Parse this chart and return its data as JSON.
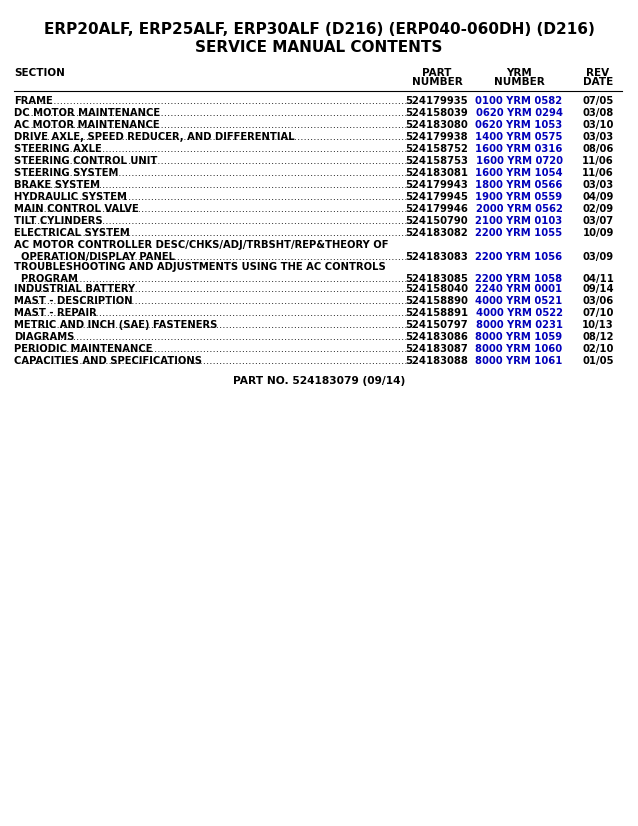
{
  "title_line1": "ERP20ALF, ERP25ALF, ERP30ALF (D216) (ERP040-060DH) (D216)",
  "title_line2": "SERVICE MANUAL CONTENTS",
  "rows": [
    {
      "section": "FRAME",
      "dots": true,
      "part": "524179935",
      "yrm": "0100 YRM 0582",
      "rev": "07/05",
      "multiline": false
    },
    {
      "section": "DC MOTOR MAINTENANCE",
      "dots": true,
      "part": "524158039",
      "yrm": "0620 YRM 0294",
      "rev": "03/08",
      "multiline": false
    },
    {
      "section": "AC MOTOR MAINTENANCE",
      "dots": true,
      "part": "524183080",
      "yrm": "0620 YRM 1053",
      "rev": "03/10",
      "multiline": false
    },
    {
      "section": "DRIVE AXLE, SPEED REDUCER, AND DIFFERENTIAL",
      "dots": true,
      "part": "524179938",
      "yrm": "1400 YRM 0575",
      "rev": "03/03",
      "multiline": false
    },
    {
      "section": "STEERING AXLE",
      "dots": true,
      "part": "524158752",
      "yrm": "1600 YRM 0316",
      "rev": "08/06",
      "multiline": false
    },
    {
      "section": "STEERING CONTROL UNIT",
      "dots": true,
      "part": "524158753",
      "yrm": "1600 YRM 0720",
      "rev": "11/06",
      "multiline": false
    },
    {
      "section": "STEERING SYSTEM",
      "dots": true,
      "part": "524183081",
      "yrm": "1600 YRM 1054",
      "rev": "11/06",
      "multiline": false
    },
    {
      "section": "BRAKE SYSTEM",
      "dots": true,
      "part": "524179943",
      "yrm": "1800 YRM 0566",
      "rev": "03/03",
      "multiline": false
    },
    {
      "section": "HYDRAULIC SYSTEM",
      "dots": true,
      "part": "524179945",
      "yrm": "1900 YRM 0559",
      "rev": "04/09",
      "multiline": false
    },
    {
      "section": "MAIN CONTROL VALVE",
      "dots": true,
      "part": "524179946",
      "yrm": "2000 YRM 0562",
      "rev": "02/09",
      "multiline": false
    },
    {
      "section": "TILT CYLINDERS",
      "dots": true,
      "part": "524150790",
      "yrm": "2100 YRM 0103",
      "rev": "03/07",
      "multiline": false
    },
    {
      "section": "ELECTRICAL SYSTEM",
      "dots": true,
      "part": "524183082",
      "yrm": "2200 YRM 1055",
      "rev": "10/09",
      "multiline": false
    },
    {
      "section": "AC MOTOR CONTROLLER DESC/CHKS/ADJ/TRBSHT/REP&THEORY OF",
      "section2": "  OPERATION/DISPLAY PANEL",
      "dots": true,
      "part": "524183083",
      "yrm": "2200 YRM 1056",
      "rev": "03/09",
      "multiline": true
    },
    {
      "section": "TROUBLESHOOTING AND ADJUSTMENTS USING THE AC CONTROLS",
      "section2": "  PROGRAM",
      "dots": true,
      "part": "524183085",
      "yrm": "2200 YRM 1058",
      "rev": "04/11",
      "multiline": true
    },
    {
      "section": "INDUSTRIAL BATTERY",
      "dots": true,
      "part": "524158040",
      "yrm": "2240 YRM 0001",
      "rev": "09/14",
      "multiline": false
    },
    {
      "section": "MAST - DESCRIPTION",
      "dots": true,
      "part": "524158890",
      "yrm": "4000 YRM 0521",
      "rev": "03/06",
      "multiline": false
    },
    {
      "section": "MAST - REPAIR",
      "dots": true,
      "part": "524158891",
      "yrm": "4000 YRM 0522",
      "rev": "07/10",
      "multiline": false
    },
    {
      "section": "METRIC AND INCH (SAE) FASTENERS",
      "dots": true,
      "part": "524150797",
      "yrm": "8000 YRM 0231",
      "rev": "10/13",
      "multiline": false
    },
    {
      "section": "DIAGRAMS",
      "dots": true,
      "part": "524183086",
      "yrm": "8000 YRM 1059",
      "rev": "08/12",
      "multiline": false
    },
    {
      "section": "PERIODIC MAINTENANCE",
      "dots": true,
      "part": "524183087",
      "yrm": "8000 YRM 1060",
      "rev": "02/10",
      "multiline": false
    },
    {
      "section": "CAPACITIES AND SPECIFICATIONS",
      "dots": true,
      "part": "524183088",
      "yrm": "8000 YRM 1061",
      "rev": "01/05",
      "multiline": false
    }
  ],
  "footer": "PART NO. 524183079 (09/14)",
  "bg_color": "#ffffff",
  "title_color": "#000000",
  "section_color": "#000000",
  "part_color": "#000000",
  "yrm_color": "#0000bb",
  "rev_color": "#000000",
  "header_color": "#000000"
}
